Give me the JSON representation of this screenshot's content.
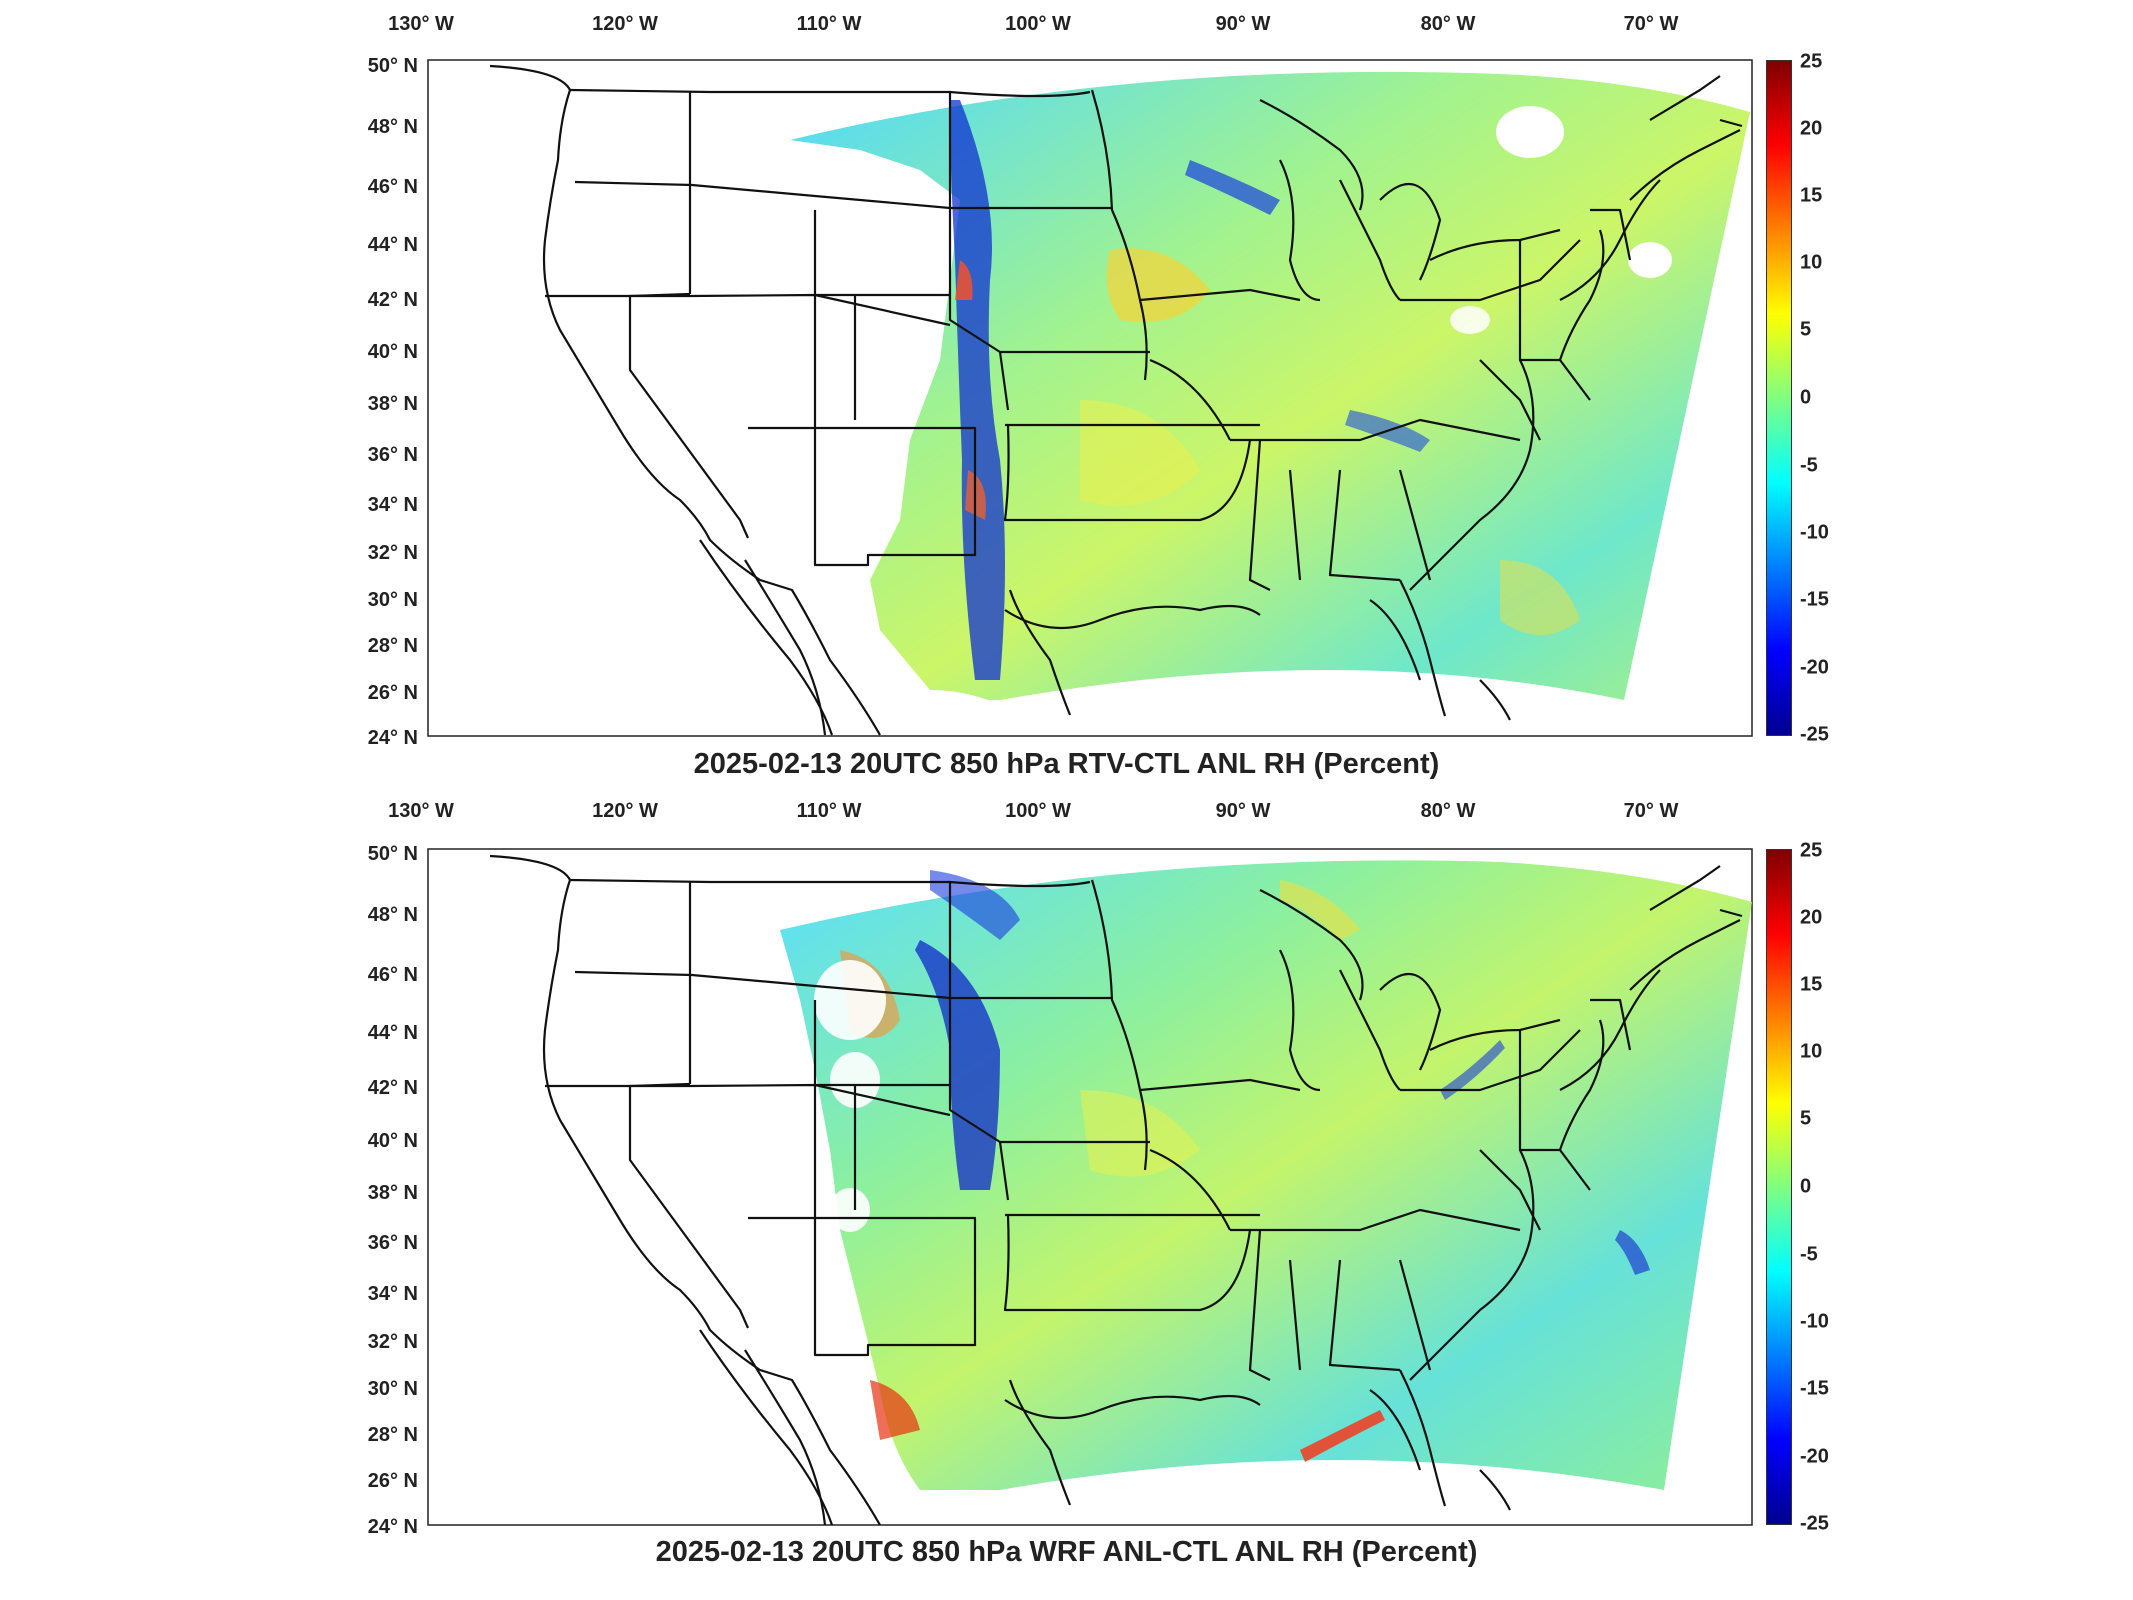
{
  "panels": [
    {
      "title": "2025-02-13 20UTC 850 hPa RTV-CTL ANL RH (Percent)",
      "field_note": "difference field"
    },
    {
      "title": "2025-02-13 20UTC 850 hPa WRF ANL-CTL ANL RH (Percent)",
      "field_note": "difference field"
    }
  ],
  "lon_labels": [
    "130° W",
    "120° W",
    "110° W",
    "100° W",
    "90° W",
    "80° W",
    "70° W"
  ],
  "lat_labels": [
    "50° N",
    "48° N",
    "46° N",
    "44° N",
    "42° N",
    "40° N",
    "38° N",
    "36° N",
    "34° N",
    "32° N",
    "30° N",
    "28° N",
    "26° N",
    "24° N"
  ],
  "colorbar": {
    "ticks": [
      "25",
      "20",
      "15",
      "10",
      "5",
      "0",
      "-5",
      "-10",
      "-15",
      "-20",
      "-25"
    ],
    "min": -25,
    "max": 25,
    "colormap": "jet",
    "colors": [
      "#00008f",
      "#0000ff",
      "#0080ff",
      "#00ffff",
      "#80ff80",
      "#ffff00",
      "#ff8000",
      "#ff0000",
      "#800000"
    ]
  }
}
